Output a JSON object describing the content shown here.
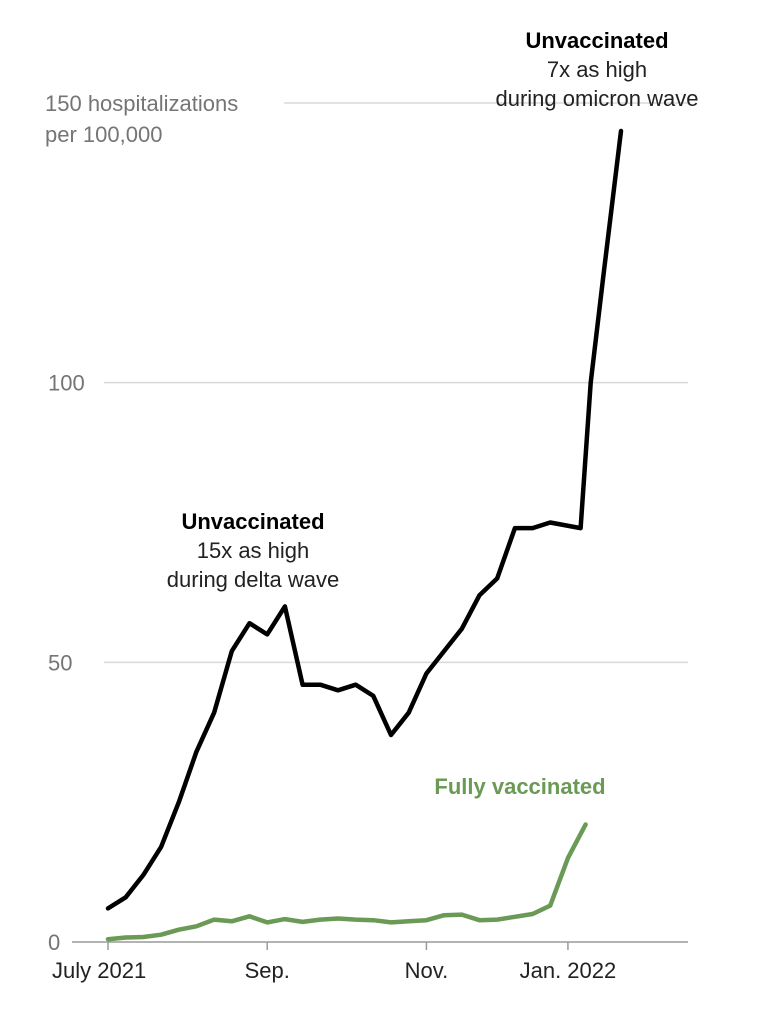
{
  "chart_data": {
    "type": "line",
    "title": "",
    "xlabel": "",
    "ylabel": "",
    "ylabel_lines": [
      "150 hospitalizations",
      "per 100,000"
    ],
    "ylim": [
      0,
      150
    ],
    "yticks": [
      {
        "value": 0,
        "label": "0"
      },
      {
        "value": 50,
        "label": "50"
      },
      {
        "value": 100,
        "label": "100"
      }
    ],
    "xlim": [
      "2021-07-03",
      "2022-01-22"
    ],
    "xticks": [
      {
        "date": "2021-07-03",
        "label": "July 2021"
      },
      {
        "date": "2021-09-04",
        "label": "Sep."
      },
      {
        "date": "2021-11-06",
        "label": "Nov."
      },
      {
        "date": "2022-01-01",
        "label": "Jan. 2022"
      }
    ],
    "x": [
      "2021-07-03",
      "2021-07-10",
      "2021-07-17",
      "2021-07-24",
      "2021-07-31",
      "2021-08-07",
      "2021-08-14",
      "2021-08-21",
      "2021-08-28",
      "2021-09-04",
      "2021-09-11",
      "2021-09-18",
      "2021-09-25",
      "2021-10-02",
      "2021-10-09",
      "2021-10-16",
      "2021-10-23",
      "2021-10-30",
      "2021-11-06",
      "2021-11-13",
      "2021-11-20",
      "2021-11-27",
      "2021-12-04",
      "2021-12-11",
      "2021-12-18",
      "2021-12-25",
      "2022-01-01",
      "2022-01-08",
      "2022-01-15",
      "2022-01-22"
    ],
    "series": [
      {
        "name": "Unvaccinated",
        "color": "#000000",
        "values": [
          6,
          8,
          12,
          17,
          25,
          34,
          41,
          52,
          57,
          55,
          60,
          46,
          46,
          45,
          46,
          44,
          37,
          41,
          48,
          52,
          56,
          62,
          65,
          74,
          74,
          75,
          null,
          null,
          null,
          null
        ],
        "tail": [
          {
            "date": "2022-01-06",
            "value": 74
          },
          {
            "date": "2022-01-10",
            "value": 100
          },
          {
            "date": "2022-01-15",
            "value": 119
          },
          {
            "date": "2022-01-22",
            "value": 145
          }
        ]
      },
      {
        "name": "Fully vaccinated",
        "color": "#6a9a55",
        "values": [
          0.5,
          0.8,
          0.9,
          1.3,
          2.2,
          2.8,
          4,
          3.7,
          4.6,
          3.5,
          4.1,
          3.6,
          4,
          4.2,
          4,
          3.9,
          3.5,
          3.7,
          3.9,
          4.8,
          4.9,
          3.9,
          4,
          4.5,
          5,
          6.5,
          15,
          21,
          null,
          null
        ]
      }
    ],
    "annotations": [
      {
        "id": "omicron",
        "bold": "Unvaccinated",
        "lines": [
          "7x as high",
          "during omicron wave"
        ],
        "color": "#000000"
      },
      {
        "id": "delta",
        "bold": "Unvaccinated",
        "lines": [
          "15x as high",
          "during delta wave"
        ],
        "color": "#000000"
      },
      {
        "id": "vaccinated",
        "bold": "Fully vaccinated",
        "lines": [],
        "color": "#6a9a55"
      }
    ]
  }
}
